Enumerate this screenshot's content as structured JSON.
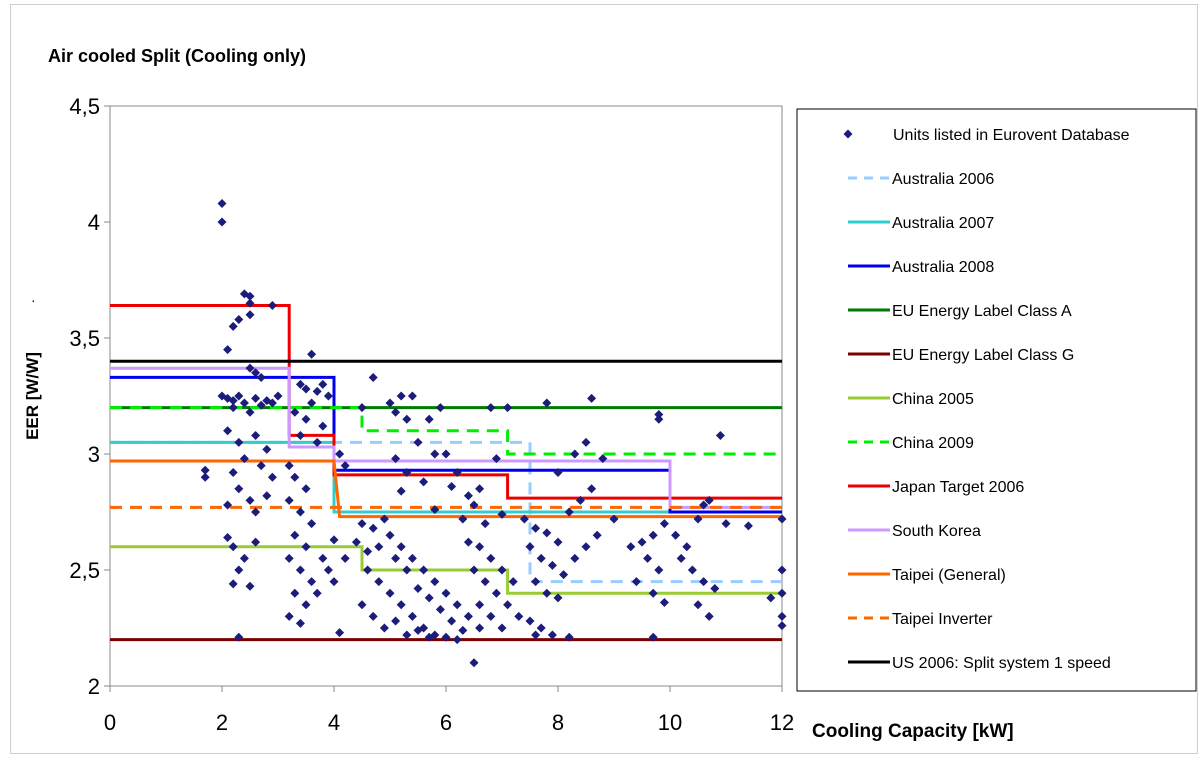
{
  "chart_data": {
    "type": "scatter",
    "title": "Air cooled Split (Cooling only)",
    "xlabel": "Cooling Capacity [kW]",
    "ylabel": "EER [W/W]",
    "xlim": [
      0,
      12
    ],
    "ylim": [
      2,
      4.5
    ],
    "xticks": [
      "0",
      "2",
      "4",
      "6",
      "8",
      "10",
      "12"
    ],
    "yticks": [
      "2",
      "2,5",
      "3",
      "3,5",
      "4",
      "4,5"
    ],
    "grid": false,
    "legend_position": "right",
    "scatter_series": {
      "name": "Units listed in Eurovent Database",
      "color": "#1c1c7a",
      "marker": "diamond",
      "points": [
        [
          2.0,
          4.08
        ],
        [
          2.0,
          4.0
        ],
        [
          2.4,
          3.69
        ],
        [
          2.5,
          3.68
        ],
        [
          2.5,
          3.65
        ],
        [
          2.5,
          3.6
        ],
        [
          2.9,
          3.64
        ],
        [
          2.2,
          3.55
        ],
        [
          2.3,
          3.58
        ],
        [
          2.1,
          3.45
        ],
        [
          3.6,
          3.43
        ],
        [
          2.5,
          3.37
        ],
        [
          2.6,
          3.35
        ],
        [
          2.7,
          3.33
        ],
        [
          2.0,
          3.25
        ],
        [
          2.1,
          3.24
        ],
        [
          2.2,
          3.23
        ],
        [
          2.3,
          3.25
        ],
        [
          2.4,
          3.22
        ],
        [
          2.6,
          3.24
        ],
        [
          2.7,
          3.21
        ],
        [
          2.8,
          3.23
        ],
        [
          2.9,
          3.22
        ],
        [
          3.0,
          3.25
        ],
        [
          2.2,
          3.2
        ],
        [
          2.5,
          3.18
        ],
        [
          3.4,
          3.3
        ],
        [
          3.5,
          3.28
        ],
        [
          3.7,
          3.27
        ],
        [
          3.8,
          3.3
        ],
        [
          3.9,
          3.25
        ],
        [
          3.6,
          3.22
        ],
        [
          3.3,
          3.18
        ],
        [
          3.5,
          3.15
        ],
        [
          3.8,
          3.12
        ],
        [
          3.4,
          3.08
        ],
        [
          3.7,
          3.05
        ],
        [
          2.1,
          3.1
        ],
        [
          2.3,
          3.05
        ],
        [
          2.6,
          3.08
        ],
        [
          2.8,
          3.02
        ],
        [
          2.4,
          2.98
        ],
        [
          2.2,
          2.92
        ],
        [
          2.7,
          2.95
        ],
        [
          2.9,
          2.9
        ],
        [
          2.3,
          2.85
        ],
        [
          2.5,
          2.8
        ],
        [
          2.8,
          2.82
        ],
        [
          2.1,
          2.78
        ],
        [
          2.6,
          2.75
        ],
        [
          1.7,
          2.93
        ],
        [
          1.7,
          2.9
        ],
        [
          2.1,
          2.64
        ],
        [
          2.2,
          2.6
        ],
        [
          2.4,
          2.55
        ],
        [
          2.6,
          2.62
        ],
        [
          2.3,
          2.5
        ],
        [
          2.2,
          2.44
        ],
        [
          2.5,
          2.43
        ],
        [
          2.3,
          2.21
        ],
        [
          3.2,
          2.95
        ],
        [
          3.3,
          2.9
        ],
        [
          3.5,
          2.85
        ],
        [
          3.2,
          2.8
        ],
        [
          3.4,
          2.75
        ],
        [
          3.6,
          2.7
        ],
        [
          3.3,
          2.65
        ],
        [
          3.5,
          2.6
        ],
        [
          3.2,
          2.55
        ],
        [
          3.4,
          2.5
        ],
        [
          3.6,
          2.45
        ],
        [
          3.3,
          2.4
        ],
        [
          3.5,
          2.35
        ],
        [
          3.8,
          2.55
        ],
        [
          3.7,
          2.4
        ],
        [
          3.9,
          2.5
        ],
        [
          3.2,
          2.3
        ],
        [
          3.4,
          2.27
        ],
        [
          4.1,
          3.0
        ],
        [
          4.2,
          2.95
        ],
        [
          4.0,
          2.63
        ],
        [
          4.2,
          2.55
        ],
        [
          4.0,
          2.45
        ],
        [
          4.1,
          2.23
        ],
        [
          4.7,
          3.33
        ],
        [
          4.5,
          3.2
        ],
        [
          5.0,
          3.22
        ],
        [
          5.2,
          3.25
        ],
        [
          5.1,
          3.18
        ],
        [
          5.4,
          3.25
        ],
        [
          5.3,
          3.15
        ],
        [
          5.5,
          3.05
        ],
        [
          5.1,
          2.98
        ],
        [
          5.3,
          2.92
        ],
        [
          5.6,
          2.88
        ],
        [
          5.8,
          3.0
        ],
        [
          5.2,
          2.84
        ],
        [
          5.9,
          3.2
        ],
        [
          5.7,
          3.15
        ],
        [
          6.0,
          3.0
        ],
        [
          6.2,
          2.92
        ],
        [
          6.4,
          2.82
        ],
        [
          6.1,
          2.86
        ],
        [
          5.8,
          2.76
        ],
        [
          6.3,
          2.72
        ],
        [
          6.8,
          3.2
        ],
        [
          7.1,
          3.2
        ],
        [
          6.9,
          2.98
        ],
        [
          6.6,
          2.85
        ],
        [
          6.5,
          2.78
        ],
        [
          7.0,
          2.74
        ],
        [
          6.7,
          2.7
        ],
        [
          4.5,
          2.7
        ],
        [
          4.7,
          2.68
        ],
        [
          4.9,
          2.72
        ],
        [
          5.0,
          2.65
        ],
        [
          5.2,
          2.6
        ],
        [
          5.4,
          2.55
        ],
        [
          5.6,
          2.5
        ],
        [
          5.8,
          2.45
        ],
        [
          6.0,
          2.4
        ],
        [
          6.2,
          2.35
        ],
        [
          6.4,
          2.3
        ],
        [
          6.6,
          2.25
        ],
        [
          4.6,
          2.5
        ],
        [
          4.8,
          2.45
        ],
        [
          5.0,
          2.4
        ],
        [
          5.2,
          2.35
        ],
        [
          5.4,
          2.3
        ],
        [
          5.6,
          2.25
        ],
        [
          5.8,
          2.22
        ],
        [
          6.0,
          2.21
        ],
        [
          6.2,
          2.2
        ],
        [
          4.4,
          2.62
        ],
        [
          4.6,
          2.58
        ],
        [
          4.8,
          2.6
        ],
        [
          5.1,
          2.55
        ],
        [
          5.3,
          2.5
        ],
        [
          5.5,
          2.42
        ],
        [
          5.7,
          2.38
        ],
        [
          5.9,
          2.33
        ],
        [
          6.1,
          2.28
        ],
        [
          6.3,
          2.24
        ],
        [
          4.5,
          2.35
        ],
        [
          4.7,
          2.3
        ],
        [
          4.9,
          2.25
        ],
        [
          5.1,
          2.28
        ],
        [
          5.3,
          2.22
        ],
        [
          5.5,
          2.24
        ],
        [
          5.7,
          2.21
        ],
        [
          6.4,
          2.62
        ],
        [
          6.6,
          2.6
        ],
        [
          6.8,
          2.55
        ],
        [
          7.0,
          2.5
        ],
        [
          7.2,
          2.45
        ],
        [
          6.5,
          2.5
        ],
        [
          6.7,
          2.45
        ],
        [
          6.9,
          2.4
        ],
        [
          7.1,
          2.35
        ],
        [
          7.3,
          2.3
        ],
        [
          6.6,
          2.35
        ],
        [
          6.8,
          2.3
        ],
        [
          7.0,
          2.25
        ],
        [
          6.5,
          2.1
        ],
        [
          7.4,
          2.72
        ],
        [
          7.6,
          2.68
        ],
        [
          7.8,
          2.66
        ],
        [
          8.0,
          2.62
        ],
        [
          7.5,
          2.6
        ],
        [
          7.7,
          2.55
        ],
        [
          7.9,
          2.52
        ],
        [
          8.1,
          2.48
        ],
        [
          7.6,
          2.45
        ],
        [
          7.8,
          2.4
        ],
        [
          8.0,
          2.38
        ],
        [
          7.5,
          2.28
        ],
        [
          7.7,
          2.25
        ],
        [
          7.9,
          2.22
        ],
        [
          8.2,
          2.21
        ],
        [
          7.6,
          2.22
        ],
        [
          8.3,
          2.55
        ],
        [
          8.5,
          2.6
        ],
        [
          8.7,
          2.65
        ],
        [
          8.2,
          2.75
        ],
        [
          8.4,
          2.8
        ],
        [
          8.6,
          2.85
        ],
        [
          8.0,
          2.92
        ],
        [
          8.3,
          3.0
        ],
        [
          8.5,
          3.05
        ],
        [
          8.8,
          2.98
        ],
        [
          7.8,
          3.22
        ],
        [
          8.6,
          3.24
        ],
        [
          9.0,
          2.72
        ],
        [
          9.3,
          2.6
        ],
        [
          9.5,
          2.62
        ],
        [
          9.7,
          2.65
        ],
        [
          9.9,
          2.7
        ],
        [
          9.6,
          2.55
        ],
        [
          9.8,
          2.5
        ],
        [
          9.4,
          2.45
        ],
        [
          9.7,
          2.4
        ],
        [
          9.9,
          2.36
        ],
        [
          9.8,
          3.17
        ],
        [
          9.8,
          3.15
        ],
        [
          9.7,
          2.21
        ],
        [
          10.1,
          2.65
        ],
        [
          10.3,
          2.6
        ],
        [
          10.5,
          2.72
        ],
        [
          10.6,
          2.78
        ],
        [
          10.7,
          2.8
        ],
        [
          10.4,
          2.5
        ],
        [
          10.6,
          2.45
        ],
        [
          10.8,
          2.42
        ],
        [
          10.5,
          2.35
        ],
        [
          10.7,
          2.3
        ],
        [
          10.2,
          2.55
        ],
        [
          10.9,
          3.08
        ],
        [
          11.0,
          2.7
        ],
        [
          11.4,
          2.69
        ],
        [
          11.8,
          2.38
        ],
        [
          12.0,
          2.5
        ],
        [
          12.0,
          2.4
        ],
        [
          12.0,
          2.3
        ],
        [
          12.0,
          2.26
        ],
        [
          12.0,
          2.72
        ]
      ]
    },
    "series": [
      {
        "name": "Australia 2006",
        "color": "#99ccff",
        "dash": "dashed",
        "x": [
          0,
          7.5,
          7.5,
          12
        ],
        "y": [
          3.05,
          3.05,
          2.45,
          2.45
        ]
      },
      {
        "name": "Australia 2007",
        "color": "#33cccc",
        "dash": "solid",
        "x": [
          0,
          4,
          4,
          12
        ],
        "y": [
          3.05,
          3.05,
          2.75,
          2.75
        ]
      },
      {
        "name": "Australia 2008",
        "color": "#0000ee",
        "dash": "solid",
        "x": [
          0,
          4,
          4,
          10,
          10,
          12
        ],
        "y": [
          3.33,
          3.33,
          2.93,
          2.93,
          2.75,
          2.75
        ]
      },
      {
        "name": "EU Energy Label Class A",
        "color": "#007a00",
        "dash": "solid",
        "x": [
          0,
          12
        ],
        "y": [
          3.2,
          3.2
        ]
      },
      {
        "name": "EU Energy Label Class G",
        "color": "#7a0000",
        "dash": "solid",
        "x": [
          0,
          12
        ],
        "y": [
          2.2,
          2.2
        ]
      },
      {
        "name": "China 2005",
        "color": "#99cc33",
        "dash": "solid",
        "x": [
          0,
          4.5,
          4.5,
          7.1,
          7.1,
          12
        ],
        "y": [
          2.6,
          2.6,
          2.5,
          2.5,
          2.4,
          2.4
        ]
      },
      {
        "name": "China 2009",
        "color": "#00ee00",
        "dash": "dashed",
        "x": [
          0,
          4.5,
          4.5,
          7.1,
          7.1,
          12
        ],
        "y": [
          3.2,
          3.2,
          3.1,
          3.1,
          3.0,
          3.0
        ]
      },
      {
        "name": "Japan Target 2006",
        "color": "#ee0000",
        "dash": "solid",
        "x": [
          0,
          3.2,
          3.2,
          4,
          4,
          7.1,
          7.1,
          12
        ],
        "y": [
          3.64,
          3.64,
          3.08,
          3.08,
          2.91,
          2.91,
          2.81,
          2.81
        ]
      },
      {
        "name": "South Korea",
        "color": "#cc99ff",
        "dash": "solid",
        "x": [
          0,
          3.2,
          3.2,
          4,
          4,
          10,
          10,
          12
        ],
        "y": [
          3.37,
          3.37,
          3.03,
          3.03,
          2.97,
          2.97,
          2.77,
          2.77
        ]
      },
      {
        "name": "Taipei (General)",
        "color": "#ff6600",
        "dash": "solid",
        "x": [
          0,
          4,
          4.1,
          12
        ],
        "y": [
          2.97,
          2.97,
          2.73,
          2.73
        ]
      },
      {
        "name": "Taipei Inverter",
        "color": "#ff6600",
        "dash": "dashed",
        "x": [
          0,
          12
        ],
        "y": [
          2.77,
          2.77
        ]
      },
      {
        "name": "US 2006: Split system 1 speed",
        "color": "#000000",
        "dash": "solid",
        "x": [
          0,
          12
        ],
        "y": [
          3.4,
          3.4
        ]
      }
    ]
  }
}
